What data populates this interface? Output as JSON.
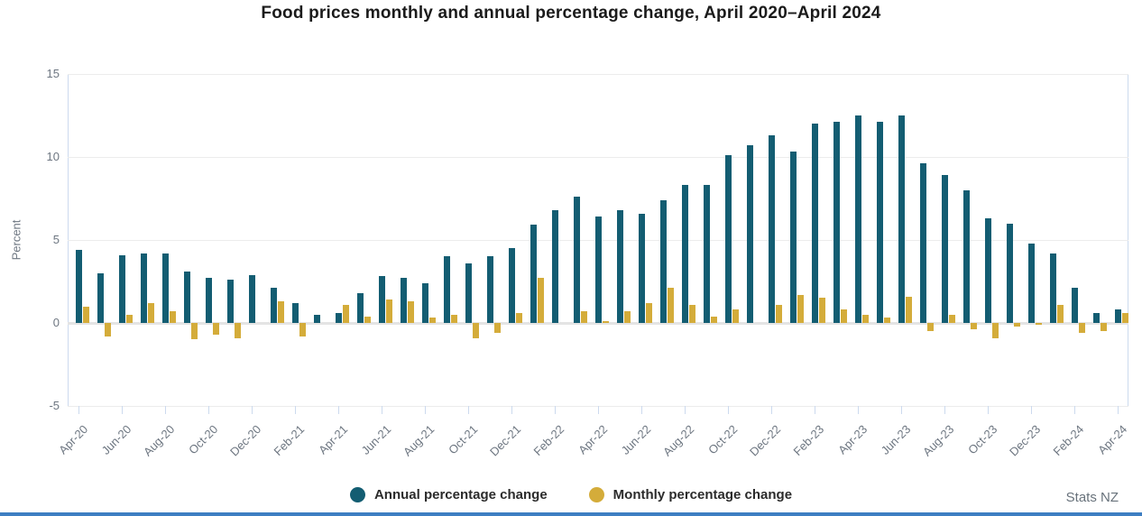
{
  "title": "Food prices monthly and annual percentage change, April 2020–April 2024",
  "source": "Stats NZ",
  "colors": {
    "footer_bar": "#3d7ec2",
    "axis_text": "#6d7681"
  },
  "chart_data": {
    "type": "bar",
    "title": "Food prices monthly and annual percentage change, April 2020–April 2024",
    "xlabel": "",
    "ylabel": "Percent",
    "ylim": [
      -5,
      15
    ],
    "yticks": [
      15,
      10,
      5,
      0,
      -5
    ],
    "grid": true,
    "legend_position": "bottom",
    "x_tick_interval": 2,
    "categories": [
      "Apr-20",
      "May-20",
      "Jun-20",
      "Jul-20",
      "Aug-20",
      "Sep-20",
      "Oct-20",
      "Nov-20",
      "Dec-20",
      "Jan-21",
      "Feb-21",
      "Mar-21",
      "Apr-21",
      "May-21",
      "Jun-21",
      "Jul-21",
      "Aug-21",
      "Sep-21",
      "Oct-21",
      "Nov-21",
      "Dec-21",
      "Jan-22",
      "Feb-22",
      "Mar-22",
      "Apr-22",
      "May-22",
      "Jun-22",
      "Jul-22",
      "Aug-22",
      "Sep-22",
      "Oct-22",
      "Nov-22",
      "Dec-22",
      "Jan-23",
      "Feb-23",
      "Mar-23",
      "Apr-23",
      "May-23",
      "Jun-23",
      "Jul-23",
      "Aug-23",
      "Sep-23",
      "Oct-23",
      "Nov-23",
      "Dec-23",
      "Jan-24",
      "Feb-24",
      "Mar-24",
      "Apr-24"
    ],
    "series": [
      {
        "name": "Annual percentage change",
        "color": "#135d72",
        "values": [
          4.4,
          3.0,
          4.1,
          4.2,
          4.2,
          3.1,
          2.7,
          2.6,
          2.9,
          2.1,
          1.2,
          0.5,
          0.6,
          1.8,
          2.8,
          2.7,
          2.4,
          4.0,
          3.6,
          4.0,
          4.5,
          5.9,
          6.8,
          7.6,
          6.4,
          6.8,
          6.6,
          7.4,
          8.3,
          8.3,
          10.1,
          10.7,
          11.3,
          10.3,
          12.0,
          12.1,
          12.5,
          12.1,
          12.5,
          9.6,
          8.9,
          8.0,
          6.3,
          6.0,
          4.8,
          4.2,
          2.1,
          0.6,
          0.8
        ]
      },
      {
        "name": "Monthly percentage change",
        "color": "#d4ac3a",
        "values": [
          1.0,
          -0.8,
          0.5,
          1.2,
          0.7,
          -1.0,
          -0.7,
          -0.9,
          0.0,
          1.3,
          -0.8,
          0.0,
          1.1,
          0.4,
          1.4,
          1.3,
          0.3,
          0.5,
          -0.9,
          -0.6,
          0.6,
          2.7,
          0.0,
          0.7,
          0.1,
          0.7,
          1.2,
          2.1,
          1.1,
          0.4,
          0.8,
          0.0,
          1.1,
          1.7,
          1.5,
          0.8,
          0.5,
          0.3,
          1.6,
          -0.5,
          0.5,
          -0.4,
          -0.9,
          -0.2,
          -0.1,
          1.1,
          -0.6,
          -0.5,
          0.6
        ]
      }
    ]
  }
}
